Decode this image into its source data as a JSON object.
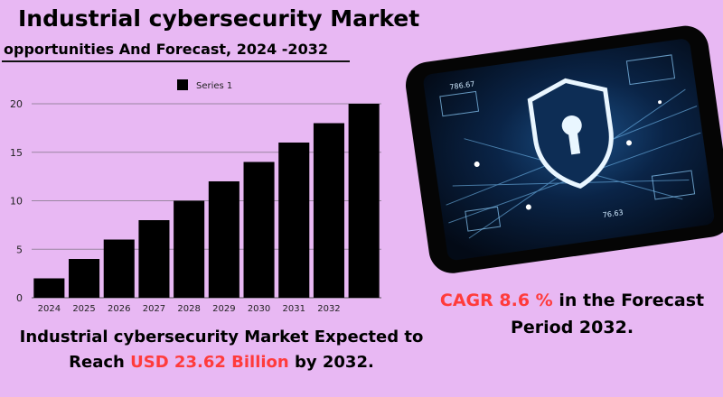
{
  "header": {
    "title": "Industrial cybersecurity Market",
    "subtitle": "opportunities And Forecast, 2024 -2032"
  },
  "chart_data": {
    "type": "bar",
    "categories": [
      "2024",
      "2025",
      "2026",
      "2027",
      "2028",
      "2029",
      "2030",
      "2031",
      "2032",
      ""
    ],
    "series": [
      {
        "name": "Series 1",
        "values": [
          2,
          4,
          6,
          8,
          10,
          12,
          14,
          16,
          18,
          20
        ]
      }
    ],
    "yticks": [
      "0",
      "5",
      "10",
      "15",
      "20"
    ],
    "ylim": [
      0,
      20
    ],
    "grid": true,
    "legend": "top-center",
    "bar_color": "#000000"
  },
  "caption": {
    "line1": "Industrial cybersecurity Market Expected to",
    "reach_prefix": "Reach",
    "value": "USD 23.62   Billion",
    "suffix": "by 2032."
  },
  "cagr": {
    "label": "CAGR  8.6 %",
    "text": "in the  Forecast",
    "line2": "Period  2032."
  },
  "image_readouts": {
    "number_top": "786.67",
    "number_bottom": "76.63"
  },
  "colors": {
    "background": "#e8b8f3",
    "accent_red": "#ff3b3b",
    "tablet_glow": "#4fb3ff"
  }
}
